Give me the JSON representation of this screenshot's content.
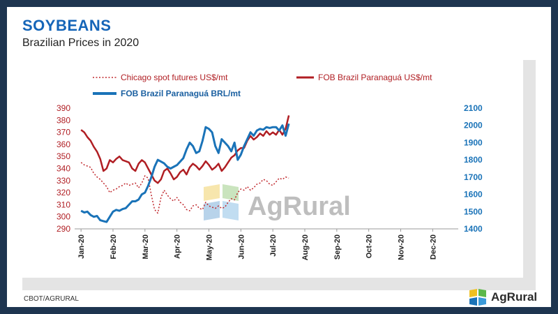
{
  "header": {
    "title": "SOYBEANS",
    "subtitle": "Brazilian Prices in 2020"
  },
  "footer": {
    "source": "CBOT/AGRURAL",
    "logo_text": "AgRural"
  },
  "watermark": {
    "text": "AgRural"
  },
  "colors": {
    "red": "#b01e23",
    "blue": "#1a73b8",
    "brand_blue": "#1565b8",
    "frame": "#1e3550"
  },
  "chart_data": {
    "type": "line",
    "legend_position": "top",
    "x_ticks": [
      "Jan-20",
      "Feb-20",
      "Mar-20",
      "Apr-20",
      "May-20",
      "Jun-20",
      "Jul-20",
      "Aug-20",
      "Sep-20",
      "Oct-20",
      "Nov-20",
      "Dec-20"
    ],
    "y_left": {
      "ticks": [
        290,
        300,
        310,
        320,
        330,
        340,
        350,
        360,
        370,
        380,
        390
      ],
      "range": [
        290,
        390
      ]
    },
    "y_right": {
      "ticks": [
        1400,
        1500,
        1600,
        1700,
        1800,
        1900,
        2000,
        2100
      ],
      "range": [
        1400,
        2100
      ]
    },
    "series": [
      {
        "name": "Chicago spot futures US$/mt",
        "axis": "left",
        "style": "dotted",
        "color": "#c0282d",
        "x": [
          0,
          0.1,
          0.2,
          0.3,
          0.4,
          0.5,
          0.6,
          0.7,
          0.8,
          0.9,
          1.0,
          1.1,
          1.2,
          1.3,
          1.4,
          1.5,
          1.6,
          1.7,
          1.8,
          1.9,
          2.0,
          2.1,
          2.2,
          2.3,
          2.4,
          2.5,
          2.6,
          2.7,
          2.8,
          2.9,
          3.0,
          3.1,
          3.2,
          3.3,
          3.4,
          3.5,
          3.6,
          3.7,
          3.8,
          3.9,
          4.0,
          4.1,
          4.2,
          4.3,
          4.4,
          4.5,
          4.6,
          4.7,
          4.8,
          4.9,
          5.0,
          5.1,
          5.2,
          5.3,
          5.4,
          5.5,
          5.6,
          5.7,
          5.8,
          5.9,
          6.0,
          6.1,
          6.2,
          6.3,
          6.4,
          6.5
        ],
        "values": [
          345,
          343,
          342,
          341,
          336,
          333,
          331,
          328,
          325,
          320,
          322,
          323,
          325,
          326,
          328,
          326,
          327,
          328,
          324,
          328,
          334,
          332,
          318,
          306,
          303,
          316,
          322,
          318,
          315,
          313,
          316,
          312,
          310,
          306,
          305,
          309,
          310,
          307,
          306,
          312,
          309,
          308,
          307,
          309,
          307,
          308,
          312,
          315,
          314,
          320,
          323,
          322,
          325,
          322,
          324,
          327,
          328,
          331,
          330,
          327,
          326,
          329,
          332,
          331,
          333,
          332
        ]
      },
      {
        "name": "FOB Brazil Paranaguá US$/mt",
        "axis": "left",
        "style": "solid",
        "color": "#b01e23",
        "x": [
          0,
          0.1,
          0.2,
          0.3,
          0.4,
          0.5,
          0.6,
          0.7,
          0.8,
          0.9,
          1.0,
          1.1,
          1.2,
          1.3,
          1.4,
          1.5,
          1.6,
          1.7,
          1.8,
          1.9,
          2.0,
          2.1,
          2.2,
          2.3,
          2.4,
          2.5,
          2.6,
          2.7,
          2.8,
          2.9,
          3.0,
          3.1,
          3.2,
          3.3,
          3.4,
          3.5,
          3.6,
          3.7,
          3.8,
          3.9,
          4.0,
          4.1,
          4.2,
          4.3,
          4.4,
          4.5,
          4.6,
          4.7,
          4.8,
          4.9,
          5.0,
          5.1,
          5.2,
          5.3,
          5.4,
          5.5,
          5.6,
          5.7,
          5.8,
          5.9,
          6.0,
          6.1,
          6.2,
          6.3,
          6.4,
          6.5
        ],
        "values": [
          372,
          370,
          366,
          363,
          358,
          354,
          348,
          338,
          340,
          347,
          345,
          348,
          350,
          347,
          346,
          345,
          340,
          338,
          344,
          347,
          345,
          340,
          335,
          330,
          328,
          331,
          338,
          340,
          336,
          331,
          333,
          337,
          339,
          335,
          341,
          344,
          342,
          339,
          342,
          346,
          343,
          339,
          341,
          344,
          338,
          341,
          345,
          349,
          351,
          355,
          357,
          357,
          363,
          367,
          364,
          366,
          369,
          367,
          371,
          368,
          370,
          368,
          372,
          368,
          373,
          384
        ]
      },
      {
        "name": "FOB Brazil Paranaguá BRL/mt",
        "axis": "right",
        "style": "solid",
        "color": "#1a73b8",
        "x": [
          0,
          0.1,
          0.2,
          0.3,
          0.4,
          0.5,
          0.6,
          0.7,
          0.8,
          0.9,
          1.0,
          1.1,
          1.2,
          1.3,
          1.4,
          1.5,
          1.6,
          1.7,
          1.8,
          1.9,
          2.0,
          2.1,
          2.2,
          2.3,
          2.4,
          2.5,
          2.6,
          2.7,
          2.8,
          2.9,
          3.0,
          3.1,
          3.2,
          3.3,
          3.4,
          3.5,
          3.6,
          3.7,
          3.8,
          3.9,
          4.0,
          4.1,
          4.2,
          4.3,
          4.4,
          4.5,
          4.6,
          4.7,
          4.8,
          4.9,
          5.0,
          5.1,
          5.2,
          5.3,
          5.4,
          5.5,
          5.6,
          5.7,
          5.8,
          5.9,
          6.0,
          6.1,
          6.2,
          6.3,
          6.4,
          6.5
        ],
        "values": [
          1505,
          1495,
          1500,
          1480,
          1470,
          1475,
          1450,
          1445,
          1440,
          1470,
          1500,
          1510,
          1505,
          1515,
          1520,
          1540,
          1560,
          1560,
          1570,
          1600,
          1610,
          1650,
          1700,
          1760,
          1800,
          1790,
          1780,
          1760,
          1750,
          1760,
          1770,
          1790,
          1810,
          1860,
          1900,
          1880,
          1840,
          1850,
          1910,
          1990,
          1980,
          1960,
          1880,
          1840,
          1920,
          1900,
          1880,
          1850,
          1900,
          1800,
          1830,
          1880,
          1920,
          1960,
          1940,
          1970,
          1980,
          1975,
          1990,
          1985,
          1990,
          1990,
          1970,
          2000,
          1940,
          2010
        ]
      }
    ]
  }
}
